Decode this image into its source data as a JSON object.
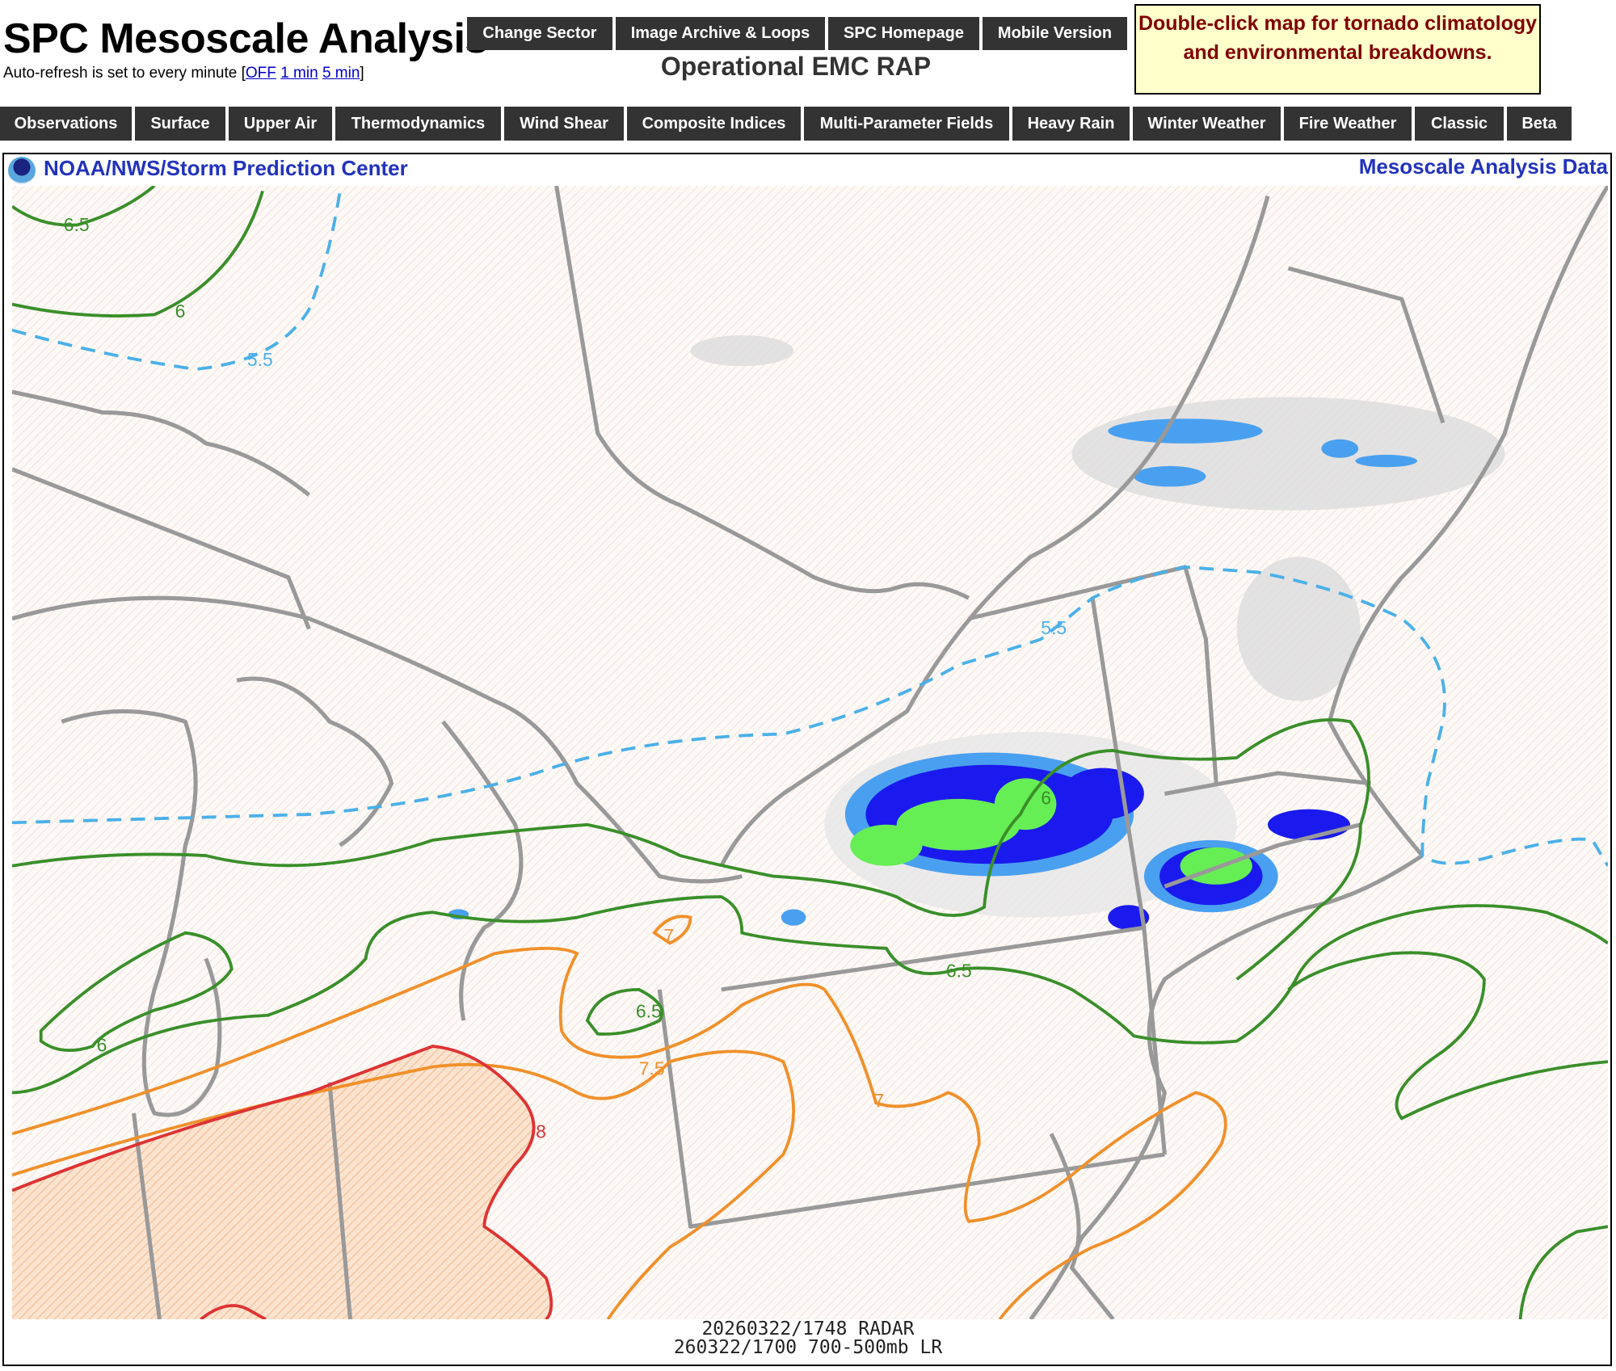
{
  "header": {
    "title": "SPC Mesoscale Analysis",
    "refresh_text": "Auto-refresh is set to every minute [",
    "refresh_close": "]",
    "refresh_links": [
      "OFF",
      "1 min",
      "5 min"
    ],
    "subtitle": "Operational EMC RAP",
    "notice": "Double-click map for tornado climatology and environmental breakdowns."
  },
  "top_buttons": [
    "Change Sector",
    "Image Archive & Loops",
    "SPC Homepage",
    "Mobile Version"
  ],
  "nav": [
    "Observations",
    "Surface",
    "Upper Air",
    "Thermodynamics",
    "Wind Shear",
    "Composite Indices",
    "Multi-Parameter Fields",
    "Heavy Rain",
    "Winter Weather",
    "Fire Weather",
    "Classic",
    "Beta"
  ],
  "map": {
    "header_left": "NOAA/NWS/Storm Prediction Center",
    "header_right": "Mesoscale Analysis Data",
    "contour_labels": [
      "6.5",
      "6",
      "5.5",
      "5.5",
      "6",
      "6.5",
      "6.5",
      "6",
      "7",
      "7.5",
      "7",
      "8"
    ],
    "footer_line1": "20260322/1748 RADAR",
    "footer_line2": "260322/1700 700-500mb LR",
    "colors": {
      "green_contour": "#3a8f2a",
      "blue_dashed": "#4ab0e8",
      "orange_contour": "#f0902a",
      "red_contour": "#dd3333",
      "border_gray": "#999999"
    }
  }
}
